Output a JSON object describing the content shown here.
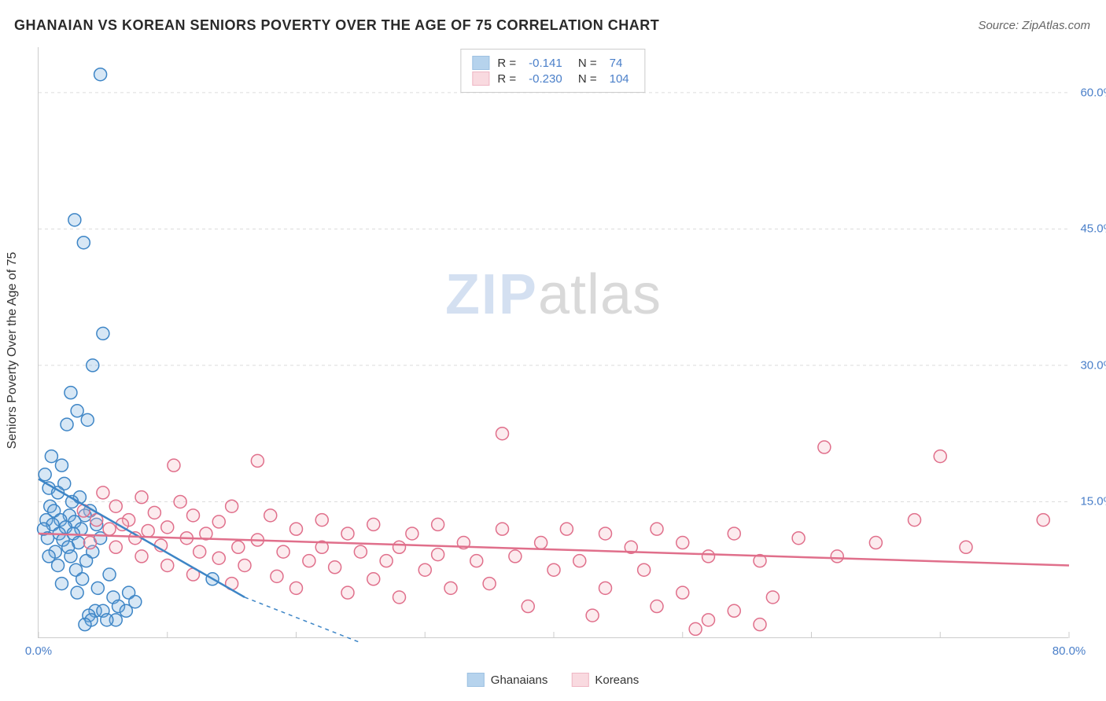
{
  "title": "GHANAIAN VS KOREAN SENIORS POVERTY OVER THE AGE OF 75 CORRELATION CHART",
  "source": "Source: ZipAtlas.com",
  "ylabel": "Seniors Poverty Over the Age of 75",
  "watermark": {
    "left": "ZIP",
    "right": "atlas"
  },
  "chart": {
    "type": "scatter",
    "xlim": [
      0,
      80
    ],
    "ylim": [
      0,
      65
    ],
    "xticks": [
      0,
      10,
      20,
      30,
      40,
      50,
      60,
      70,
      80
    ],
    "xtick_labels": {
      "0": "0.0%",
      "80": "80.0%"
    },
    "yticks": [
      15,
      30,
      45,
      60
    ],
    "ytick_labels": {
      "15": "15.0%",
      "30": "30.0%",
      "45": "45.0%",
      "60": "60.0%"
    },
    "background_color": "#ffffff",
    "grid_color": "#dcdcdc",
    "marker_radius": 8,
    "marker_stroke_width": 1.5,
    "marker_fill_opacity": 0.28
  },
  "series": [
    {
      "name": "Ghanaians",
      "color": "#6fa8dc",
      "stroke": "#3d85c6",
      "R": "-0.141",
      "N": "74",
      "regression": {
        "x1": 0,
        "y1": 17.5,
        "x2": 16,
        "y2": 4.5,
        "dash_extend_x": 25,
        "dash_extend_y": -0.5
      },
      "points": [
        [
          4.8,
          62
        ],
        [
          2.8,
          46
        ],
        [
          3.5,
          43.5
        ],
        [
          5,
          33.5
        ],
        [
          4.2,
          30
        ],
        [
          2.5,
          27
        ],
        [
          3,
          25
        ],
        [
          3.8,
          24
        ],
        [
          2.2,
          23.5
        ],
        [
          1,
          20
        ],
        [
          1.8,
          19
        ],
        [
          0.5,
          18
        ],
        [
          2,
          17
        ],
        [
          0.8,
          16.5
        ],
        [
          1.5,
          16
        ],
        [
          3.2,
          15.5
        ],
        [
          2.6,
          15
        ],
        [
          0.9,
          14.5
        ],
        [
          4,
          14
        ],
        [
          1.2,
          14
        ],
        [
          2.4,
          13.5
        ],
        [
          3.6,
          13.5
        ],
        [
          0.6,
          13
        ],
        [
          1.7,
          13
        ],
        [
          2.8,
          12.8
        ],
        [
          4.5,
          12.5
        ],
        [
          1.1,
          12.5
        ],
        [
          2.1,
          12.2
        ],
        [
          3.3,
          12
        ],
        [
          0.4,
          12
        ],
        [
          1.6,
          11.5
        ],
        [
          2.7,
          11.5
        ],
        [
          4.8,
          11
        ],
        [
          0.7,
          11
        ],
        [
          1.9,
          10.8
        ],
        [
          3.1,
          10.5
        ],
        [
          2.3,
          10
        ],
        [
          1.3,
          9.5
        ],
        [
          4.2,
          9.5
        ],
        [
          0.8,
          9
        ],
        [
          2.5,
          9
        ],
        [
          3.7,
          8.5
        ],
        [
          1.5,
          8
        ],
        [
          2.9,
          7.5
        ],
        [
          5.5,
          7
        ],
        [
          3.4,
          6.5
        ],
        [
          1.8,
          6
        ],
        [
          13.5,
          6.5
        ],
        [
          4.6,
          5.5
        ],
        [
          7,
          5
        ],
        [
          3,
          5
        ],
        [
          5.8,
          4.5
        ],
        [
          7.5,
          4
        ],
        [
          6.2,
          3.5
        ],
        [
          4.4,
          3
        ],
        [
          5,
          3
        ],
        [
          6.8,
          3
        ],
        [
          3.9,
          2.5
        ],
        [
          6,
          2
        ],
        [
          4.1,
          2
        ],
        [
          5.3,
          2
        ],
        [
          3.6,
          1.5
        ]
      ]
    },
    {
      "name": "Koreans",
      "color": "#f4b6c2",
      "stroke": "#e06f8b",
      "R": "-0.230",
      "N": "104",
      "regression": {
        "x1": 0,
        "y1": 11.5,
        "x2": 80,
        "y2": 8
      },
      "points": [
        [
          36,
          22.5
        ],
        [
          61,
          21
        ],
        [
          70,
          20
        ],
        [
          17,
          19.5
        ],
        [
          10.5,
          19
        ],
        [
          5,
          16
        ],
        [
          8,
          15.5
        ],
        [
          11,
          15
        ],
        [
          15,
          14.5
        ],
        [
          6,
          14.5
        ],
        [
          3.5,
          14
        ],
        [
          9,
          13.8
        ],
        [
          12,
          13.5
        ],
        [
          18,
          13.5
        ],
        [
          22,
          13
        ],
        [
          7,
          13
        ],
        [
          4.5,
          13
        ],
        [
          14,
          12.8
        ],
        [
          26,
          12.5
        ],
        [
          31,
          12.5
        ],
        [
          6.5,
          12.5
        ],
        [
          10,
          12.2
        ],
        [
          20,
          12
        ],
        [
          36,
          12
        ],
        [
          41,
          12
        ],
        [
          48,
          12
        ],
        [
          5.5,
          12
        ],
        [
          8.5,
          11.8
        ],
        [
          13,
          11.5
        ],
        [
          24,
          11.5
        ],
        [
          29,
          11.5
        ],
        [
          44,
          11.5
        ],
        [
          54,
          11.5
        ],
        [
          59,
          11
        ],
        [
          7.5,
          11
        ],
        [
          11.5,
          11
        ],
        [
          17,
          10.8
        ],
        [
          33,
          10.5
        ],
        [
          39,
          10.5
        ],
        [
          50,
          10.5
        ],
        [
          65,
          10.5
        ],
        [
          4,
          10.5
        ],
        [
          9.5,
          10.2
        ],
        [
          15.5,
          10
        ],
        [
          22,
          10
        ],
        [
          28,
          10
        ],
        [
          46,
          10
        ],
        [
          72,
          10
        ],
        [
          6,
          10
        ],
        [
          12.5,
          9.5
        ],
        [
          19,
          9.5
        ],
        [
          25,
          9.5
        ],
        [
          31,
          9.2
        ],
        [
          37,
          9
        ],
        [
          52,
          9
        ],
        [
          62,
          9
        ],
        [
          8,
          9
        ],
        [
          14,
          8.8
        ],
        [
          21,
          8.5
        ],
        [
          27,
          8.5
        ],
        [
          34,
          8.5
        ],
        [
          42,
          8.5
        ],
        [
          56,
          8.5
        ],
        [
          10,
          8
        ],
        [
          16,
          8
        ],
        [
          23,
          7.8
        ],
        [
          30,
          7.5
        ],
        [
          40,
          7.5
        ],
        [
          47,
          7.5
        ],
        [
          68,
          13
        ],
        [
          78,
          13
        ],
        [
          12,
          7
        ],
        [
          18.5,
          6.8
        ],
        [
          26,
          6.5
        ],
        [
          35,
          6
        ],
        [
          44,
          5.5
        ],
        [
          50,
          5
        ],
        [
          57,
          4.5
        ],
        [
          20,
          5.5
        ],
        [
          28,
          4.5
        ],
        [
          38,
          3.5
        ],
        [
          32,
          5.5
        ],
        [
          24,
          5
        ],
        [
          15,
          6
        ],
        [
          54,
          3
        ],
        [
          48,
          3.5
        ],
        [
          43,
          2.5
        ],
        [
          52,
          2
        ],
        [
          56,
          1.5
        ],
        [
          51,
          1
        ]
      ]
    }
  ],
  "legend": {
    "rows": [
      {
        "series_idx": 0,
        "label_r": "R =",
        "label_n": "N ="
      },
      {
        "series_idx": 1,
        "label_r": "R =",
        "label_n": "N ="
      }
    ]
  },
  "bottom_legend": [
    {
      "series_idx": 0
    },
    {
      "series_idx": 1
    }
  ]
}
